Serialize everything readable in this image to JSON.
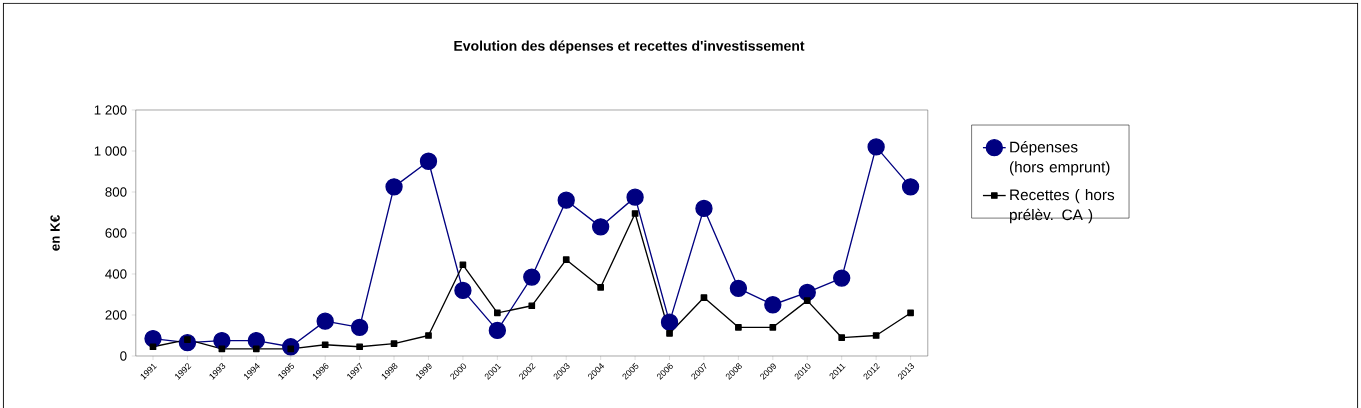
{
  "chart_data": {
    "type": "line",
    "title": "Evolution des dépenses et recettes d'investissement",
    "ylabel": "en K€",
    "categories": [
      "1991",
      "1992",
      "1993",
      "1994",
      "1995",
      "1996",
      "1997",
      "1998",
      "1999",
      "2000",
      "2001",
      "2002",
      "2003",
      "2004",
      "2005",
      "2006",
      "2007",
      "2008",
      "2009",
      "2010",
      "2011",
      "2012",
      "2013"
    ],
    "series": [
      {
        "name": "Dépenses (hors emprunt)",
        "color": "#000080",
        "marker": "circle",
        "values": [
          85,
          65,
          75,
          75,
          45,
          170,
          140,
          825,
          950,
          320,
          125,
          385,
          760,
          630,
          775,
          165,
          720,
          330,
          250,
          310,
          380,
          1020,
          825
        ]
      },
      {
        "name": "Recettes ( hors prélèv. CA )",
        "color": "#000000",
        "marker": "square",
        "values": [
          45,
          80,
          35,
          35,
          35,
          55,
          45,
          60,
          100,
          445,
          210,
          245,
          470,
          335,
          695,
          110,
          285,
          140,
          140,
          270,
          90,
          100,
          210
        ]
      }
    ],
    "ylim": [
      0,
      1200
    ],
    "yticks": [
      0,
      200,
      400,
      600,
      800,
      {
        "value": 1000,
        "label": "1 000"
      },
      {
        "value": 1200,
        "label": "1 200"
      }
    ],
    "grid": false,
    "legend": "right"
  }
}
